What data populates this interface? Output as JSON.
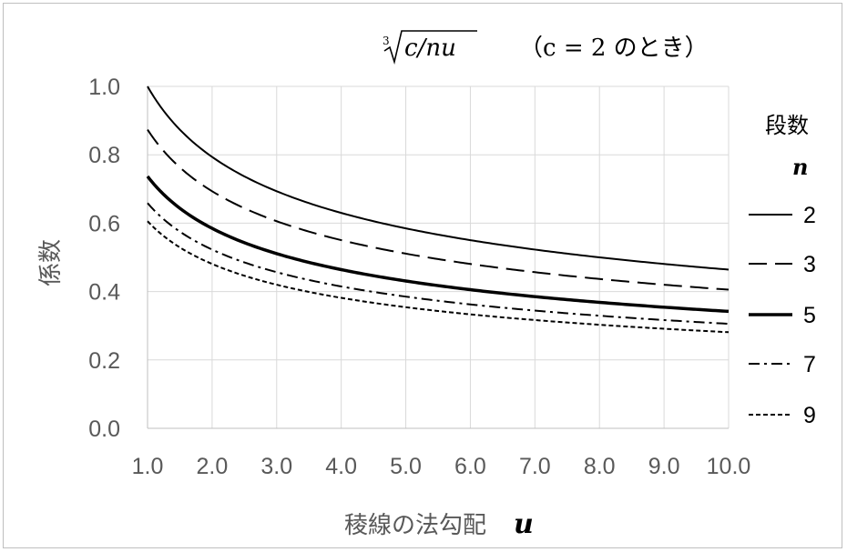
{
  "chart_data": {
    "type": "line",
    "formula": "c/nu",
    "formula_root_index": "3",
    "title_condition": "（c = 2 のとき）",
    "xlabel_text": "稜線の法勾配",
    "xlabel_var": "u",
    "ylabel": "係数",
    "xlim": [
      1.0,
      10.0
    ],
    "ylim": [
      0.0,
      1.0
    ],
    "x_ticks": [
      "1.0",
      "2.0",
      "3.0",
      "4.0",
      "5.0",
      "6.0",
      "7.0",
      "8.0",
      "9.0",
      "10.0"
    ],
    "y_ticks": [
      "0.0",
      "0.2",
      "0.4",
      "0.6",
      "0.8",
      "1.0"
    ],
    "grid": true,
    "c": 2,
    "legend_position": "right",
    "legend_title_line1": "段数",
    "legend_title_line2": "n",
    "series": [
      {
        "name": "2",
        "n": 2,
        "style": "solid",
        "width": 2
      },
      {
        "name": "3",
        "n": 3,
        "style": "long-dash",
        "width": 2
      },
      {
        "name": "5",
        "n": 5,
        "style": "solid",
        "width": 3.5
      },
      {
        "name": "7",
        "n": 7,
        "style": "dash-dot",
        "width": 2
      },
      {
        "name": "9",
        "n": 9,
        "style": "short-dash",
        "width": 2
      }
    ]
  }
}
